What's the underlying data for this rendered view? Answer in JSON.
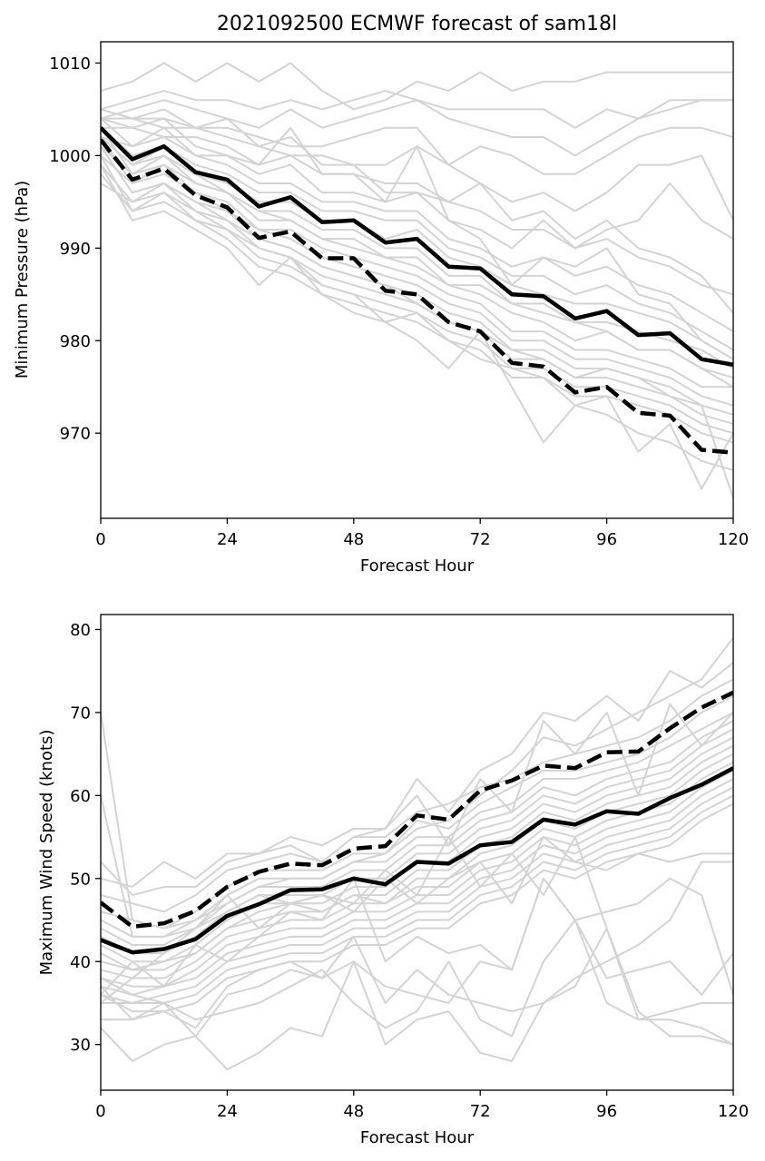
{
  "chart_data": [
    {
      "type": "line",
      "title": "2021092500 ECMWF forecast of sam18l",
      "xlabel": "Forecast Hour",
      "ylabel": "Minimum Pressure (hPa)",
      "xlim": [
        0,
        120
      ],
      "ylim": [
        960.8,
        1012.3
      ],
      "xticks": [
        0,
        24,
        48,
        72,
        96,
        120
      ],
      "yticks": [
        970,
        980,
        990,
        1000,
        1010
      ],
      "x": [
        0,
        6,
        12,
        18,
        24,
        30,
        36,
        42,
        48,
        54,
        60,
        66,
        72,
        78,
        84,
        90,
        96,
        102,
        108,
        114,
        120
      ],
      "grid": false,
      "legend": "none",
      "colors": {
        "ensemble": "#d3d3d3",
        "mean": "#000000"
      },
      "series": [
        {
          "style": "solid",
          "values": [
            1003.0,
            999.6,
            1001.0,
            998.2,
            997.4,
            994.5,
            995.5,
            992.8,
            993.0,
            990.6,
            991.0,
            988.0,
            987.8,
            985.0,
            984.8,
            982.4,
            983.2,
            980.6,
            980.8,
            978.0,
            977.4
          ]
        },
        {
          "style": "dashed",
          "values": [
            1001.7,
            997.4,
            998.6,
            995.7,
            994.4,
            991.1,
            991.8,
            988.9,
            988.9,
            985.4,
            985.0,
            982.0,
            981.0,
            977.6,
            977.2,
            974.4,
            975.0,
            972.2,
            971.9,
            968.2,
            967.9
          ]
        }
      ],
      "ensemble": [
        [
          1007,
          1008,
          1010,
          1008,
          1010,
          1008,
          1010,
          1007,
          1005,
          1006,
          1008,
          1007,
          1009,
          1007,
          1008,
          1008,
          1009,
          1009,
          1009,
          1009,
          1009
        ],
        [
          1005,
          1006,
          1007,
          1006,
          1006,
          1005,
          1006,
          1005,
          1006,
          1007,
          1006,
          1005,
          1005,
          1005,
          1005,
          1003,
          1005,
          1004,
          1006,
          1006,
          1006
        ],
        [
          1004,
          1005,
          1006,
          1005,
          1004,
          1003,
          1005,
          1003,
          1004,
          1005,
          1006,
          1004,
          1003,
          1002,
          1002,
          1000,
          1002,
          1004,
          1005,
          1006,
          1006
        ],
        [
          1004,
          1004,
          1004,
          1003,
          1003,
          1002,
          1001,
          1001,
          1002,
          1003,
          1003,
          999,
          1001,
          1000,
          998,
          998,
          1000,
          1002,
          1003,
          1003,
          1002
        ],
        [
          1005,
          1004,
          1003,
          1003,
          1002,
          1001,
          1000,
          1000,
          999,
          999,
          1001,
          999,
          997,
          995,
          996,
          994,
          996,
          999,
          999,
          1000,
          993
        ],
        [
          1003,
          1003,
          1002,
          1002,
          1001,
          999,
          1000,
          998,
          998,
          997,
          997,
          995,
          994,
          992,
          992,
          990,
          992,
          993,
          997,
          993,
          991
        ],
        [
          1004,
          1001,
          1003,
          1000,
          1000,
          998,
          999,
          996,
          996,
          995,
          996,
          993,
          992,
          990,
          993,
          990,
          991,
          989,
          988,
          986,
          985
        ],
        [
          1002,
          1001,
          1002,
          1000,
          999,
          997,
          997,
          995,
          995,
          994,
          994,
          991,
          990,
          988,
          989,
          987,
          988,
          986,
          985,
          983,
          981
        ],
        [
          1003,
          1000,
          1001,
          999,
          998,
          996,
          996,
          994,
          994,
          993,
          993,
          990,
          989,
          987,
          987,
          985,
          986,
          984,
          983,
          981,
          979
        ],
        [
          1002,
          999,
          1001,
          998,
          997,
          995,
          995,
          993,
          993,
          991,
          992,
          989,
          988,
          986,
          985,
          984,
          984,
          983,
          982,
          980,
          978
        ],
        [
          1003,
          998,
          1000,
          998,
          996,
          994,
          994,
          992,
          992,
          990,
          990,
          987,
          987,
          984,
          984,
          982,
          982,
          981,
          980,
          979,
          977
        ],
        [
          1001,
          998,
          999,
          997,
          996,
          993,
          993,
          991,
          990,
          989,
          988,
          986,
          985,
          983,
          982,
          980,
          981,
          979,
          979,
          977,
          976
        ],
        [
          1002,
          997,
          999,
          996,
          995,
          992,
          992,
          990,
          989,
          988,
          987,
          985,
          984,
          981,
          981,
          979,
          979,
          978,
          977,
          975,
          975
        ],
        [
          1000,
          997,
          998,
          996,
          994,
          992,
          991,
          989,
          988,
          987,
          986,
          984,
          983,
          980,
          980,
          978,
          978,
          977,
          976,
          974,
          973
        ],
        [
          1001,
          996,
          997,
          995,
          993,
          991,
          990,
          988,
          987,
          986,
          985,
          983,
          982,
          979,
          979,
          977,
          977,
          976,
          975,
          973,
          972
        ],
        [
          999,
          995,
          997,
          994,
          993,
          990,
          989,
          987,
          986,
          985,
          984,
          982,
          981,
          978,
          978,
          976,
          976,
          975,
          974,
          972,
          971
        ],
        [
          1000,
          994,
          996,
          993,
          992,
          989,
          988,
          986,
          985,
          984,
          983,
          981,
          980,
          977,
          977,
          975,
          975,
          974,
          973,
          971,
          970
        ],
        [
          998,
          994,
          995,
          993,
          991,
          988,
          987,
          985,
          984,
          983,
          982,
          980,
          979,
          976,
          976,
          974,
          974,
          973,
          972,
          970,
          969
        ],
        [
          999,
          993,
          994,
          992,
          990,
          986,
          989,
          985,
          983,
          982,
          980,
          977,
          981,
          975,
          969,
          973,
          974,
          968,
          971,
          964,
          970
        ],
        [
          997,
          995,
          996,
          994,
          992,
          990,
          989,
          986,
          985,
          982,
          983,
          980,
          978,
          977,
          976,
          973,
          972,
          970,
          969,
          967,
          966
        ],
        [
          1004,
          1003,
          1004,
          1001,
          1000,
          999,
          1003,
          998,
          998,
          995,
          1001,
          993,
          991,
          986,
          989,
          988,
          990,
          985,
          984,
          980,
          978
        ],
        [
          1005,
          1004,
          1005,
          1003,
          1004,
          1001,
          1002,
          999,
          999,
          996,
          996,
          995,
          997,
          993,
          994,
          991,
          993,
          990,
          989,
          987,
          983
        ],
        [
          1001,
          996,
          997,
          995,
          994,
          991,
          990,
          988,
          987,
          986,
          984,
          982,
          981,
          979,
          978,
          976,
          977,
          976,
          974,
          973,
          963
        ],
        [
          1002,
          999,
          1000,
          997,
          996,
          994,
          993,
          991,
          991,
          989,
          989,
          986,
          986,
          984,
          983,
          982,
          981,
          979,
          979,
          977,
          975
        ]
      ]
    },
    {
      "type": "line",
      "xlabel": "Forecast Hour",
      "ylabel": "Maximum Wind Speed (knots)",
      "xlim": [
        0,
        120
      ],
      "ylim": [
        24.5,
        81.8
      ],
      "xticks": [
        0,
        24,
        48,
        72,
        96,
        120
      ],
      "yticks": [
        30,
        40,
        50,
        60,
        70,
        80
      ],
      "x": [
        0,
        6,
        12,
        18,
        24,
        30,
        36,
        42,
        48,
        54,
        60,
        66,
        72,
        78,
        84,
        90,
        96,
        102,
        108,
        114,
        120
      ],
      "grid": false,
      "legend": "none",
      "colors": {
        "ensemble": "#d3d3d3",
        "mean": "#000000"
      },
      "series": [
        {
          "style": "solid",
          "values": [
            42.6,
            41.1,
            41.5,
            42.7,
            45.5,
            46.9,
            48.6,
            48.7,
            50.0,
            49.3,
            52.0,
            51.8,
            54.0,
            54.4,
            57.1,
            56.5,
            58.1,
            57.8,
            59.7,
            61.3,
            63.3
          ]
        },
        {
          "style": "dashed",
          "values": [
            47.1,
            44.2,
            44.6,
            46.1,
            49.0,
            50.8,
            51.8,
            51.6,
            53.6,
            53.9,
            57.6,
            57.1,
            60.6,
            61.8,
            63.6,
            63.3,
            65.2,
            65.3,
            68.1,
            70.6,
            72.4
          ]
        }
      ],
      "ensemble": [
        [
          70,
          45,
          44,
          45,
          47,
          49,
          50,
          50,
          52,
          53,
          56,
          57,
          60,
          63,
          67,
          66,
          68,
          70,
          72,
          74,
          79
        ],
        [
          52,
          48,
          49,
          49,
          52,
          53,
          55,
          54,
          56,
          56,
          62,
          58,
          63,
          65,
          70,
          69,
          72,
          69,
          75,
          73,
          76
        ],
        [
          48,
          47,
          46,
          48,
          51,
          52,
          53,
          52,
          55,
          55,
          58,
          59,
          61,
          62,
          64,
          65,
          66,
          67,
          69,
          72,
          74
        ],
        [
          46,
          45,
          44,
          46,
          49,
          51,
          51,
          51,
          53,
          53,
          57,
          56,
          59,
          61,
          63,
          63,
          64,
          65,
          67,
          70,
          72
        ],
        [
          45,
          43,
          43,
          45,
          48,
          50,
          50,
          50,
          52,
          52,
          55,
          55,
          58,
          59,
          62,
          62,
          63,
          64,
          66,
          68,
          70
        ],
        [
          44,
          42,
          42,
          44,
          47,
          49,
          49,
          49,
          51,
          51,
          54,
          54,
          57,
          58,
          61,
          60,
          62,
          63,
          64,
          67,
          69
        ],
        [
          43,
          41,
          41,
          43,
          46,
          48,
          48,
          48,
          50,
          50,
          53,
          53,
          56,
          57,
          60,
          59,
          61,
          62,
          63,
          66,
          68
        ],
        [
          42,
          40,
          40,
          42,
          45,
          47,
          47,
          47,
          49,
          49,
          52,
          52,
          55,
          56,
          59,
          58,
          60,
          61,
          62,
          65,
          67
        ],
        [
          41,
          39,
          40,
          41,
          44,
          46,
          47,
          46,
          48,
          48,
          51,
          51,
          54,
          55,
          58,
          57,
          59,
          60,
          61,
          64,
          66
        ],
        [
          40,
          39,
          39,
          41,
          44,
          45,
          46,
          46,
          48,
          47,
          50,
          50,
          53,
          54,
          57,
          56,
          58,
          59,
          60,
          63,
          65
        ],
        [
          39,
          38,
          38,
          40,
          43,
          44,
          45,
          45,
          47,
          47,
          49,
          49,
          52,
          53,
          56,
          55,
          57,
          58,
          59,
          62,
          64
        ],
        [
          38,
          37,
          37,
          39,
          42,
          43,
          44,
          44,
          46,
          46,
          48,
          48,
          51,
          52,
          55,
          54,
          56,
          57,
          58,
          61,
          63
        ],
        [
          37,
          36,
          37,
          38,
          41,
          42,
          43,
          43,
          45,
          45,
          47,
          47,
          50,
          51,
          54,
          53,
          55,
          56,
          57,
          60,
          62
        ],
        [
          36,
          35,
          36,
          37,
          40,
          41,
          42,
          42,
          44,
          44,
          46,
          46,
          49,
          50,
          53,
          52,
          54,
          55,
          56,
          59,
          61
        ],
        [
          35,
          35,
          35,
          36,
          39,
          40,
          41,
          41,
          43,
          43,
          45,
          45,
          48,
          49,
          52,
          51,
          53,
          54,
          55,
          58,
          60
        ],
        [
          36,
          34,
          34,
          35,
          38,
          39,
          40,
          40,
          42,
          42,
          44,
          44,
          47,
          48,
          51,
          50,
          52,
          53,
          54,
          57,
          59
        ],
        [
          33,
          33,
          34,
          32,
          37,
          39,
          40,
          38,
          40,
          37,
          36,
          35,
          40,
          39,
          50,
          45,
          35,
          33,
          33,
          32,
          30
        ],
        [
          32,
          28,
          30,
          31,
          27,
          29,
          32,
          31,
          40,
          30,
          33,
          34,
          29,
          28,
          35,
          37,
          44,
          34,
          31,
          31,
          30
        ],
        [
          38,
          36,
          35,
          33,
          34,
          35,
          37,
          39,
          35,
          32,
          34,
          40,
          33,
          31,
          40,
          45,
          38,
          39,
          40,
          36,
          41
        ],
        [
          37,
          33,
          35,
          31,
          36,
          37,
          39,
          38,
          43,
          35,
          39,
          36,
          35,
          34,
          35,
          38,
          40,
          42,
          45,
          52,
          52
        ],
        [
          36,
          40,
          37,
          42,
          40,
          43,
          46,
          45,
          50,
          40,
          43,
          41,
          42,
          39,
          50,
          45,
          46,
          47,
          50,
          48,
          36
        ],
        [
          35,
          38,
          41,
          44,
          48,
          44,
          47,
          48,
          47,
          51,
          48,
          55,
          49,
          53,
          48,
          55,
          44,
          33,
          34,
          35,
          35
        ],
        [
          60,
          43,
          43,
          44,
          46,
          48,
          47,
          48,
          46,
          50,
          47,
          50,
          52,
          47,
          55,
          52,
          51,
          53,
          52,
          53,
          53
        ],
        [
          50,
          49,
          52,
          50,
          53,
          53,
          54,
          52,
          55,
          56,
          60,
          54,
          62,
          58,
          69,
          65,
          70,
          60,
          71,
          66,
          70
        ]
      ]
    }
  ]
}
